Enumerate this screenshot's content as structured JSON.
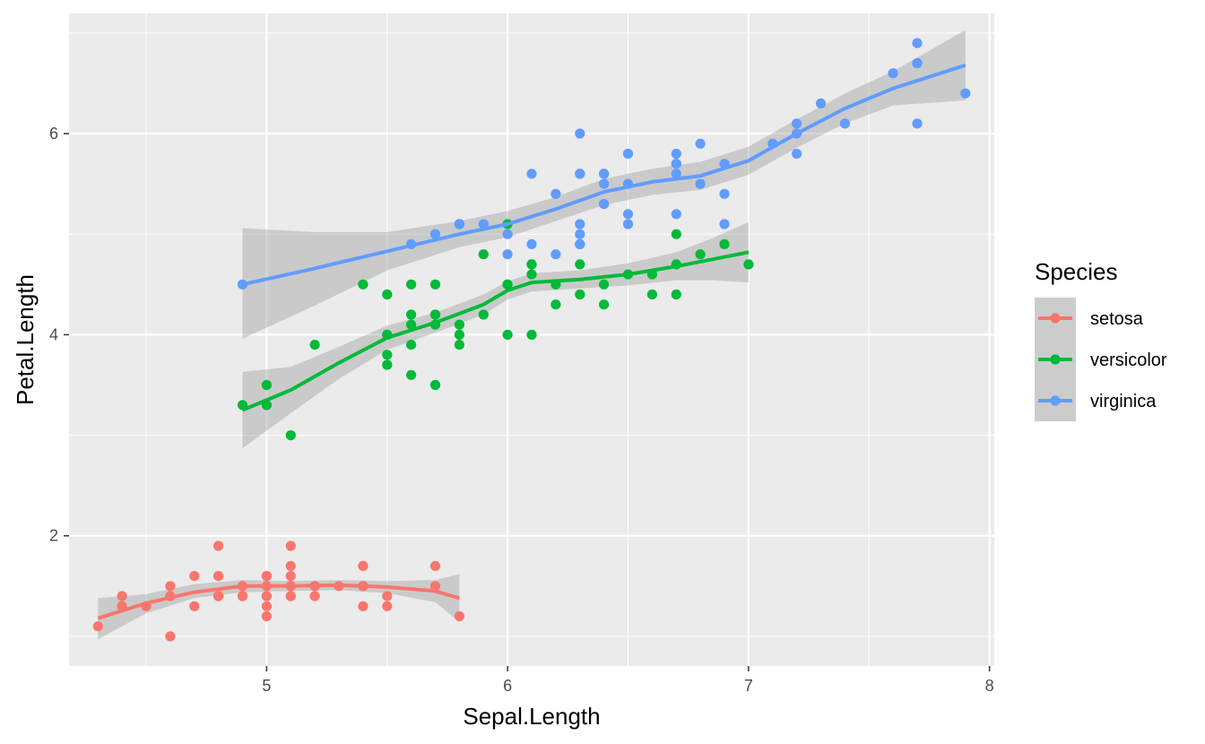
{
  "chart_data": {
    "type": "scatter",
    "xlabel": "Sepal.Length",
    "ylabel": "Petal.Length",
    "xlim": [
      4.18,
      8.02
    ],
    "ylim": [
      0.705,
      7.195
    ],
    "x_ticks": [
      5,
      6,
      7,
      8
    ],
    "x_tick_labels": [
      "5",
      "6",
      "7",
      "8"
    ],
    "y_ticks": [
      2,
      4,
      6
    ],
    "y_tick_labels": [
      "2",
      "4",
      "6"
    ],
    "grid": true,
    "legend": {
      "title": "Species",
      "position": "right"
    },
    "series": [
      {
        "name": "setosa",
        "color": "#F8766D",
        "points": [
          [
            5.1,
            1.4
          ],
          [
            4.9,
            1.4
          ],
          [
            4.7,
            1.3
          ],
          [
            4.6,
            1.5
          ],
          [
            5.0,
            1.4
          ],
          [
            5.4,
            1.7
          ],
          [
            4.6,
            1.4
          ],
          [
            5.0,
            1.5
          ],
          [
            4.4,
            1.4
          ],
          [
            4.9,
            1.5
          ],
          [
            5.4,
            1.5
          ],
          [
            4.8,
            1.6
          ],
          [
            4.8,
            1.4
          ],
          [
            4.3,
            1.1
          ],
          [
            5.8,
            1.2
          ],
          [
            5.7,
            1.5
          ],
          [
            5.4,
            1.3
          ],
          [
            5.1,
            1.4
          ],
          [
            5.7,
            1.7
          ],
          [
            5.1,
            1.5
          ],
          [
            5.4,
            1.7
          ],
          [
            5.1,
            1.5
          ],
          [
            4.6,
            1.0
          ],
          [
            5.1,
            1.7
          ],
          [
            4.8,
            1.9
          ],
          [
            5.0,
            1.6
          ],
          [
            5.0,
            1.6
          ],
          [
            5.2,
            1.5
          ],
          [
            5.2,
            1.4
          ],
          [
            4.7,
            1.6
          ],
          [
            4.8,
            1.6
          ],
          [
            5.4,
            1.5
          ],
          [
            5.2,
            1.5
          ],
          [
            5.5,
            1.4
          ],
          [
            4.9,
            1.5
          ],
          [
            5.0,
            1.2
          ],
          [
            5.5,
            1.3
          ],
          [
            4.9,
            1.4
          ],
          [
            4.4,
            1.3
          ],
          [
            5.1,
            1.5
          ],
          [
            5.0,
            1.3
          ],
          [
            4.5,
            1.3
          ],
          [
            4.4,
            1.3
          ],
          [
            5.0,
            1.6
          ],
          [
            5.1,
            1.9
          ],
          [
            4.8,
            1.4
          ],
          [
            5.1,
            1.6
          ],
          [
            4.6,
            1.4
          ],
          [
            5.3,
            1.5
          ],
          [
            5.0,
            1.4
          ]
        ],
        "smooth": [
          [
            4.3,
            1.18
          ],
          [
            4.5,
            1.33
          ],
          [
            4.7,
            1.44
          ],
          [
            4.9,
            1.5
          ],
          [
            5.1,
            1.5
          ],
          [
            5.3,
            1.51
          ],
          [
            5.5,
            1.49
          ],
          [
            5.7,
            1.45
          ],
          [
            5.8,
            1.38
          ]
        ],
        "ci_upper": [
          [
            4.3,
            1.38
          ],
          [
            4.5,
            1.42
          ],
          [
            4.7,
            1.52
          ],
          [
            4.9,
            1.56
          ],
          [
            5.1,
            1.55
          ],
          [
            5.3,
            1.56
          ],
          [
            5.5,
            1.55
          ],
          [
            5.7,
            1.56
          ],
          [
            5.8,
            1.62
          ]
        ],
        "ci_lower": [
          [
            4.3,
            0.97
          ],
          [
            4.5,
            1.23
          ],
          [
            4.7,
            1.38
          ],
          [
            4.9,
            1.44
          ],
          [
            5.1,
            1.45
          ],
          [
            5.3,
            1.46
          ],
          [
            5.5,
            1.43
          ],
          [
            5.7,
            1.34
          ],
          [
            5.8,
            1.14
          ]
        ]
      },
      {
        "name": "versicolor",
        "color": "#00BA38",
        "points": [
          [
            7.0,
            4.7
          ],
          [
            6.4,
            4.5
          ],
          [
            6.9,
            4.9
          ],
          [
            5.5,
            4.0
          ],
          [
            6.5,
            4.6
          ],
          [
            5.7,
            4.5
          ],
          [
            6.3,
            4.7
          ],
          [
            4.9,
            3.3
          ],
          [
            6.6,
            4.6
          ],
          [
            5.2,
            3.9
          ],
          [
            5.0,
            3.5
          ],
          [
            5.9,
            4.2
          ],
          [
            6.0,
            4.0
          ],
          [
            6.1,
            4.7
          ],
          [
            5.6,
            3.6
          ],
          [
            6.7,
            4.4
          ],
          [
            5.6,
            4.5
          ],
          [
            5.8,
            4.1
          ],
          [
            6.2,
            4.5
          ],
          [
            5.6,
            3.9
          ],
          [
            5.9,
            4.8
          ],
          [
            6.1,
            4.0
          ],
          [
            6.3,
            4.9
          ],
          [
            6.1,
            4.7
          ],
          [
            6.4,
            4.3
          ],
          [
            6.6,
            4.4
          ],
          [
            6.8,
            4.8
          ],
          [
            6.7,
            5.0
          ],
          [
            6.0,
            4.5
          ],
          [
            5.7,
            3.5
          ],
          [
            5.5,
            3.8
          ],
          [
            5.5,
            3.7
          ],
          [
            5.8,
            3.9
          ],
          [
            6.0,
            5.1
          ],
          [
            5.4,
            4.5
          ],
          [
            6.0,
            4.5
          ],
          [
            6.7,
            4.7
          ],
          [
            6.3,
            4.4
          ],
          [
            5.6,
            4.1
          ],
          [
            5.5,
            4.0
          ],
          [
            5.5,
            4.4
          ],
          [
            6.1,
            4.6
          ],
          [
            5.8,
            4.0
          ],
          [
            5.0,
            3.3
          ],
          [
            5.6,
            4.2
          ],
          [
            5.7,
            4.2
          ],
          [
            5.7,
            4.2
          ],
          [
            6.2,
            4.3
          ],
          [
            5.1,
            3.0
          ],
          [
            5.7,
            4.1
          ]
        ],
        "smooth": [
          [
            4.9,
            3.25
          ],
          [
            5.1,
            3.45
          ],
          [
            5.3,
            3.72
          ],
          [
            5.5,
            3.97
          ],
          [
            5.7,
            4.12
          ],
          [
            5.9,
            4.3
          ],
          [
            6.0,
            4.44
          ],
          [
            6.1,
            4.52
          ],
          [
            6.3,
            4.55
          ],
          [
            6.5,
            4.6
          ],
          [
            6.7,
            4.68
          ],
          [
            6.85,
            4.75
          ],
          [
            7.0,
            4.82
          ]
        ],
        "ci_upper": [
          [
            4.9,
            3.63
          ],
          [
            5.1,
            3.68
          ],
          [
            5.3,
            3.88
          ],
          [
            5.5,
            4.09
          ],
          [
            5.7,
            4.22
          ],
          [
            5.9,
            4.4
          ],
          [
            6.0,
            4.53
          ],
          [
            6.1,
            4.61
          ],
          [
            6.3,
            4.64
          ],
          [
            6.5,
            4.71
          ],
          [
            6.7,
            4.82
          ],
          [
            6.85,
            4.96
          ],
          [
            7.0,
            5.12
          ]
        ],
        "ci_lower": [
          [
            4.9,
            2.87
          ],
          [
            5.1,
            3.22
          ],
          [
            5.3,
            3.56
          ],
          [
            5.5,
            3.85
          ],
          [
            5.7,
            4.02
          ],
          [
            5.9,
            4.2
          ],
          [
            6.0,
            4.35
          ],
          [
            6.1,
            4.43
          ],
          [
            6.3,
            4.46
          ],
          [
            6.5,
            4.49
          ],
          [
            6.7,
            4.54
          ],
          [
            6.85,
            4.54
          ],
          [
            7.0,
            4.52
          ]
        ]
      },
      {
        "name": "virginica",
        "color": "#619CFF",
        "points": [
          [
            6.3,
            6.0
          ],
          [
            5.8,
            5.1
          ],
          [
            7.1,
            5.9
          ],
          [
            6.3,
            5.6
          ],
          [
            6.5,
            5.8
          ],
          [
            7.6,
            6.6
          ],
          [
            4.9,
            4.5
          ],
          [
            7.3,
            6.3
          ],
          [
            6.7,
            5.8
          ],
          [
            7.2,
            6.1
          ],
          [
            6.5,
            5.1
          ],
          [
            6.4,
            5.3
          ],
          [
            6.8,
            5.5
          ],
          [
            5.7,
            5.0
          ],
          [
            5.8,
            5.1
          ],
          [
            6.4,
            5.3
          ],
          [
            6.5,
            5.5
          ],
          [
            7.7,
            6.7
          ],
          [
            7.7,
            6.9
          ],
          [
            6.0,
            5.0
          ],
          [
            6.9,
            5.7
          ],
          [
            5.6,
            4.9
          ],
          [
            7.7,
            6.7
          ],
          [
            6.3,
            4.9
          ],
          [
            6.7,
            5.7
          ],
          [
            7.2,
            6.0
          ],
          [
            6.2,
            4.8
          ],
          [
            6.1,
            4.9
          ],
          [
            6.4,
            5.6
          ],
          [
            7.2,
            5.8
          ],
          [
            7.4,
            6.1
          ],
          [
            7.9,
            6.4
          ],
          [
            6.4,
            5.6
          ],
          [
            6.3,
            5.1
          ],
          [
            6.1,
            5.6
          ],
          [
            7.7,
            6.1
          ],
          [
            6.3,
            5.6
          ],
          [
            6.4,
            5.5
          ],
          [
            6.0,
            4.8
          ],
          [
            6.9,
            5.4
          ],
          [
            6.7,
            5.6
          ],
          [
            6.9,
            5.1
          ],
          [
            5.8,
            5.1
          ],
          [
            6.8,
            5.9
          ],
          [
            6.7,
            5.7
          ],
          [
            6.7,
            5.2
          ],
          [
            6.3,
            5.0
          ],
          [
            6.5,
            5.2
          ],
          [
            6.2,
            5.4
          ],
          [
            5.9,
            5.1
          ]
        ],
        "smooth": [
          [
            4.9,
            4.5
          ],
          [
            5.2,
            4.66
          ],
          [
            5.5,
            4.83
          ],
          [
            5.8,
            5.0
          ],
          [
            6.0,
            5.1
          ],
          [
            6.2,
            5.25
          ],
          [
            6.4,
            5.42
          ],
          [
            6.6,
            5.52
          ],
          [
            6.8,
            5.58
          ],
          [
            7.0,
            5.73
          ],
          [
            7.2,
            6.0
          ],
          [
            7.4,
            6.25
          ],
          [
            7.6,
            6.45
          ],
          [
            7.9,
            6.68
          ]
        ],
        "ci_upper": [
          [
            4.9,
            5.06
          ],
          [
            5.2,
            5.02
          ],
          [
            5.5,
            5.02
          ],
          [
            5.8,
            5.13
          ],
          [
            6.0,
            5.23
          ],
          [
            6.2,
            5.37
          ],
          [
            6.4,
            5.55
          ],
          [
            6.6,
            5.65
          ],
          [
            6.8,
            5.72
          ],
          [
            7.0,
            5.87
          ],
          [
            7.2,
            6.14
          ],
          [
            7.4,
            6.4
          ],
          [
            7.6,
            6.62
          ],
          [
            7.9,
            7.03
          ]
        ],
        "ci_lower": [
          [
            4.9,
            3.96
          ],
          [
            5.2,
            4.29
          ],
          [
            5.5,
            4.64
          ],
          [
            5.8,
            4.87
          ],
          [
            6.0,
            4.97
          ],
          [
            6.2,
            5.13
          ],
          [
            6.4,
            5.29
          ],
          [
            6.6,
            5.39
          ],
          [
            6.8,
            5.44
          ],
          [
            7.0,
            5.59
          ],
          [
            7.2,
            5.86
          ],
          [
            7.4,
            6.1
          ],
          [
            7.6,
            6.28
          ],
          [
            7.9,
            6.33
          ]
        ]
      }
    ]
  }
}
